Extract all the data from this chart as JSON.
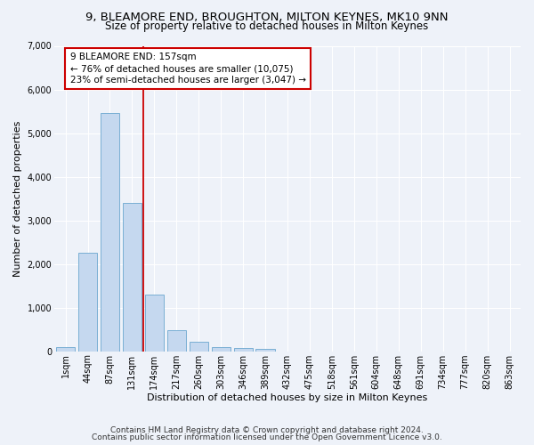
{
  "title_line1": "9, BLEAMORE END, BROUGHTON, MILTON KEYNES, MK10 9NN",
  "title_line2": "Size of property relative to detached houses in Milton Keynes",
  "xlabel": "Distribution of detached houses by size in Milton Keynes",
  "ylabel": "Number of detached properties",
  "footnote_line1": "Contains HM Land Registry data © Crown copyright and database right 2024.",
  "footnote_line2": "Contains public sector information licensed under the Open Government Licence v3.0.",
  "categories": [
    "1sqm",
    "44sqm",
    "87sqm",
    "131sqm",
    "174sqm",
    "217sqm",
    "260sqm",
    "303sqm",
    "346sqm",
    "389sqm",
    "432sqm",
    "475sqm",
    "518sqm",
    "561sqm",
    "604sqm",
    "648sqm",
    "691sqm",
    "734sqm",
    "777sqm",
    "820sqm",
    "863sqm"
  ],
  "values": [
    100,
    2250,
    5450,
    3400,
    1300,
    480,
    220,
    100,
    70,
    50,
    0,
    0,
    0,
    0,
    0,
    0,
    0,
    0,
    0,
    0,
    0
  ],
  "bar_color": "#c5d8ef",
  "bar_edge_color": "#7aafd4",
  "vline_x_index": 3,
  "vline_color": "#cc0000",
  "annotation_box_text": "9 BLEAMORE END: 157sqm\n← 76% of detached houses are smaller (10,075)\n23% of semi-detached houses are larger (3,047) →",
  "ylim": [
    0,
    7000
  ],
  "yticks": [
    0,
    1000,
    2000,
    3000,
    4000,
    5000,
    6000,
    7000
  ],
  "background_color": "#eef2f9",
  "grid_color": "#ffffff",
  "title_fontsize": 9.5,
  "subtitle_fontsize": 8.5,
  "axis_label_fontsize": 8,
  "tick_fontsize": 7,
  "annotation_fontsize": 7.5,
  "footnote_fontsize": 6.5
}
